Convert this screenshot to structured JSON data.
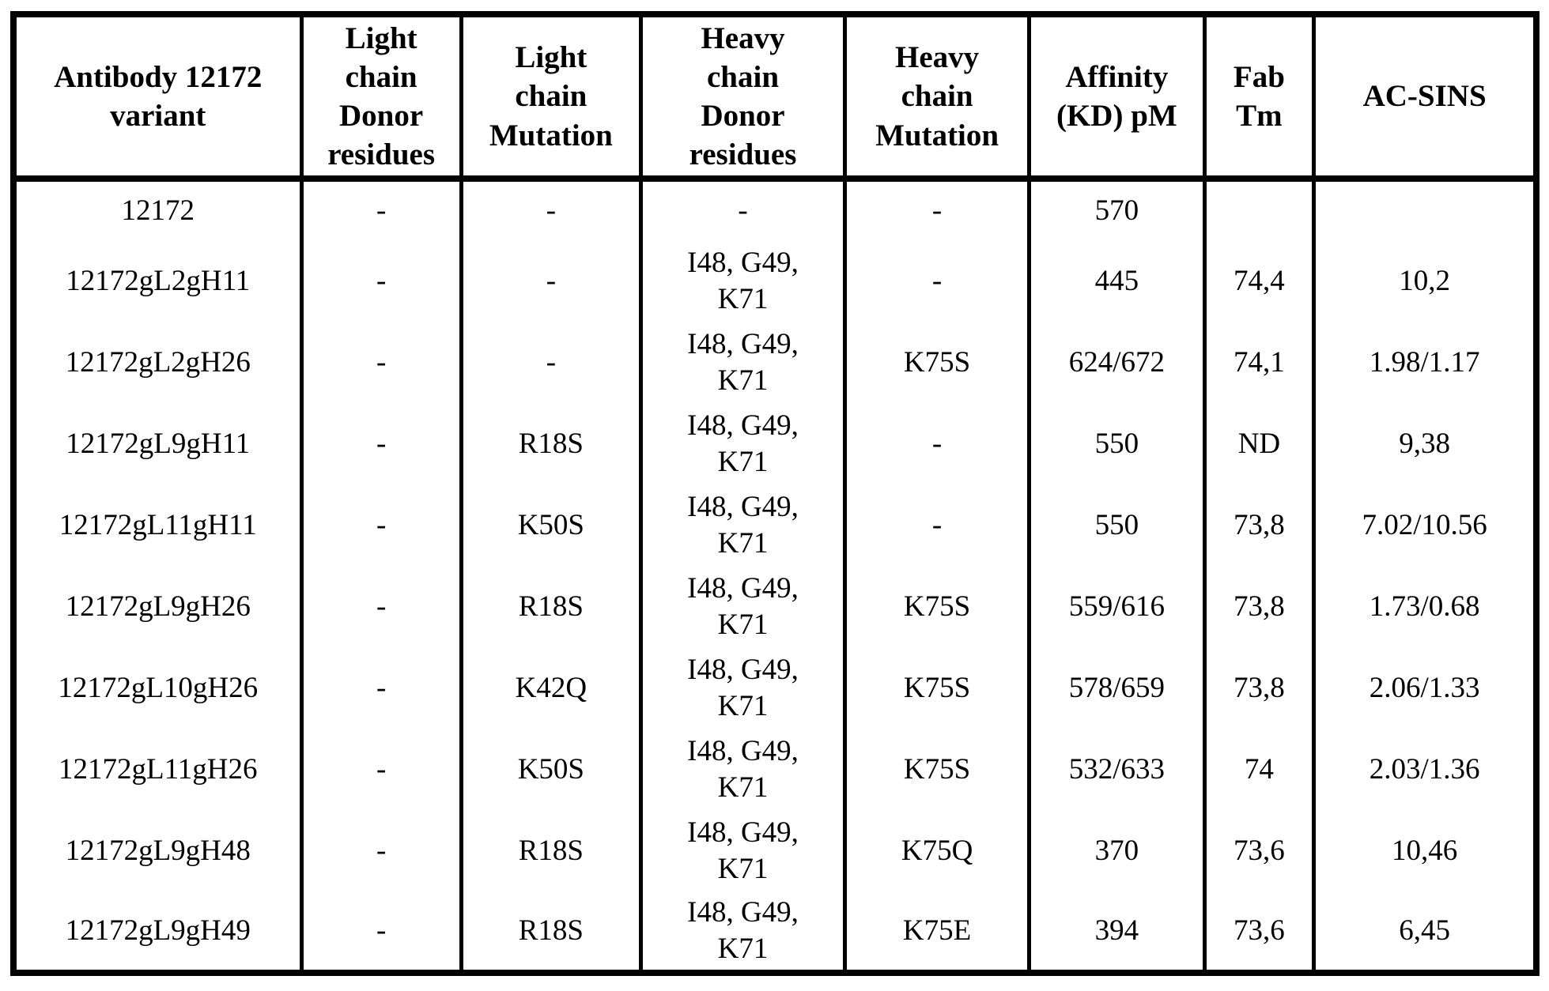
{
  "table": {
    "title": "Antibody 12172 variants table",
    "text_color": "#000000",
    "background_color": "#ffffff",
    "columns": [
      {
        "key": "variant",
        "label": "Antibody 12172\nvariant"
      },
      {
        "key": "lc-donor-residues",
        "label": "Light\nchain\nDonor\nresidues"
      },
      {
        "key": "lc-mutation",
        "label": "Light\nchain\nMutation"
      },
      {
        "key": "hc-donor-residues",
        "label": "Heavy\nchain\nDonor\nresidues"
      },
      {
        "key": "hc-mutation",
        "label": "Heavy\nchain\nMutation"
      },
      {
        "key": "affinity-kd-pm",
        "label": "Affinity\n(KD) pM"
      },
      {
        "key": "fab-tm",
        "label": "Fab\nTm"
      },
      {
        "key": "ac-sins",
        "label": "AC-SINS"
      }
    ],
    "rows": [
      {
        "cells": [
          "12172",
          "-",
          "-",
          "-",
          "-",
          "570",
          "",
          ""
        ]
      },
      {
        "cells": [
          "12172gL2gH11",
          "-",
          "-",
          "I48, G49,\nK71",
          "-",
          "445",
          "74,4",
          "10,2"
        ]
      },
      {
        "cells": [
          "12172gL2gH26",
          "-",
          "-",
          "I48, G49,\nK71",
          "K75S",
          "624/672",
          "74,1",
          "1.98/1.17"
        ]
      },
      {
        "cells": [
          "12172gL9gH11",
          "-",
          "R18S",
          "I48, G49,\nK71",
          "-",
          "550",
          "ND",
          "9,38"
        ]
      },
      {
        "cells": [
          "12172gL11gH11",
          "-",
          "K50S",
          "I48, G49,\nK71",
          "-",
          "550",
          "73,8",
          "7.02/10.56"
        ]
      },
      {
        "cells": [
          "12172gL9gH26",
          "-",
          "R18S",
          "I48, G49,\nK71",
          "K75S",
          "559/616",
          "73,8",
          "1.73/0.68"
        ]
      },
      {
        "cells": [
          "12172gL10gH26",
          "-",
          "K42Q",
          "I48, G49,\nK71",
          "K75S",
          "578/659",
          "73,8",
          "2.06/1.33"
        ]
      },
      {
        "cells": [
          "12172gL11gH26",
          "-",
          "K50S",
          "I48, G49,\nK71",
          "K75S",
          "532/633",
          "74",
          "2.03/1.36"
        ]
      },
      {
        "cells": [
          "12172gL9gH48",
          "-",
          "R18S",
          "I48, G49,\nK71",
          "K75Q",
          "370",
          "73,6",
          "10,46"
        ]
      },
      {
        "cells": [
          "12172gL9gH49",
          "-",
          "R18S",
          "I48, G49,\nK71",
          "K75E",
          "394",
          "73,6",
          "6,45"
        ]
      }
    ]
  }
}
